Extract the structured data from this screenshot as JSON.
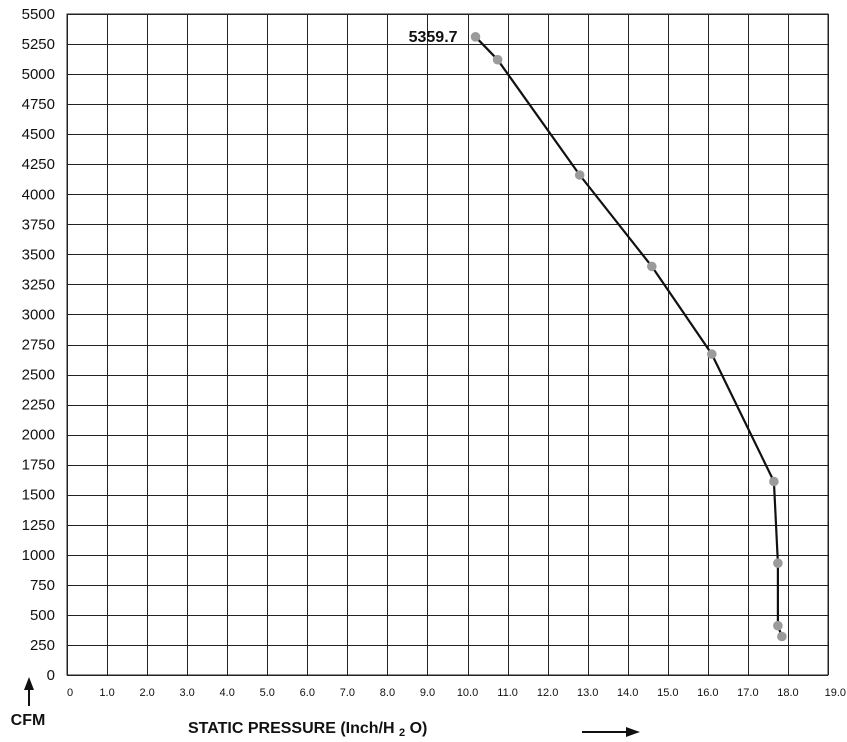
{
  "chart_data": {
    "type": "line",
    "ylabel": "CFM",
    "xlabel_main": "STATIC PRESSURE (Inch/H",
    "xlabel_sub": "2",
    "xlabel_tail": "O)",
    "annotation": "5359.7",
    "xlim": [
      0,
      19
    ],
    "ylim": [
      0,
      5500
    ],
    "grid": true,
    "x_ticks": [
      0,
      1,
      2,
      3,
      4,
      5,
      6,
      7,
      8,
      9,
      10,
      11,
      12,
      13,
      14,
      15,
      16,
      17,
      18,
      19
    ],
    "x_tick_labels": [
      "0",
      "1.0",
      "2.0",
      "3.0",
      "4.0",
      "5.0",
      "6.0",
      "7.0",
      "8.0",
      "9.0",
      "10.0",
      "11.0",
      "12.0",
      "13.0",
      "14.0",
      "15.0",
      "16.0",
      "17.0",
      "18.0",
      "19.0"
    ],
    "y_ticks": [
      0,
      250,
      500,
      750,
      1000,
      1250,
      1500,
      1750,
      2000,
      2250,
      2500,
      2750,
      3000,
      3250,
      3500,
      3750,
      4000,
      4250,
      4500,
      4750,
      5000,
      5250,
      5500
    ],
    "y_tick_labels": [
      "0",
      "250",
      "500",
      "750",
      "1000",
      "1250",
      "1500",
      "1750",
      "2000",
      "2250",
      "2500",
      "2750",
      "3000",
      "3250",
      "3500",
      "3750",
      "4000",
      "4250",
      "4500",
      "4750",
      "5000",
      "5250",
      "5500"
    ],
    "series": [
      {
        "x": [
          10.2,
          10.75,
          12.8,
          14.6,
          16.1,
          17.65,
          17.75,
          17.75,
          17.85
        ],
        "y": [
          5310,
          5120,
          4160,
          3400,
          2670,
          1610,
          930,
          410,
          320
        ]
      }
    ],
    "colors": {
      "line": "#111111",
      "point": "#9b9b9b",
      "grid": "#222222"
    }
  }
}
